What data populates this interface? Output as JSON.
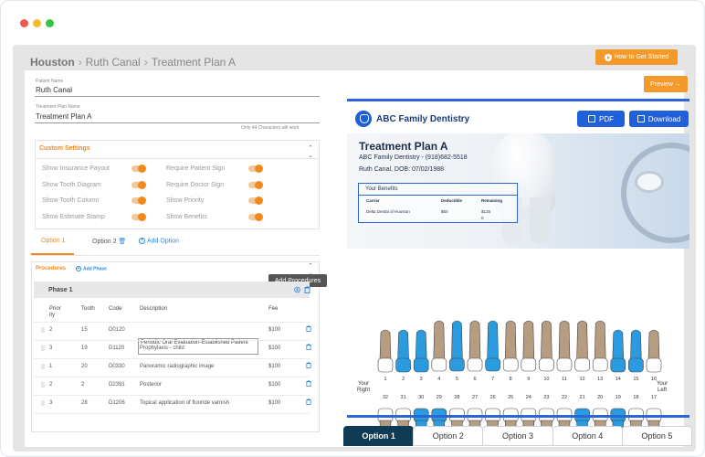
{
  "breadcrumb": {
    "root": "Houston",
    "patient": "Ruth Canal",
    "page": "Treatment Plan A"
  },
  "header": {
    "how_to_label": "How to Get Started",
    "preview_label": "Preview →"
  },
  "form": {
    "patient_label": "Patient Name",
    "patient_value": "Ruth Canal",
    "plan_label": "Treatment Plan Name",
    "plan_value": "Treatment Plan A",
    "char_hint": "Only 44 Characters will work"
  },
  "custom_settings": {
    "title": "Custom Settings",
    "left": [
      "Show Insurance Payout",
      "Show Tooth Diagram",
      "Show Tooth Column",
      "Show Estimate Stamp"
    ],
    "right": [
      "Require Patient Sign",
      "Require Doctor Sign",
      "Show Priority",
      "Show Benefits"
    ]
  },
  "option_tabs": {
    "opt1": "Option 1",
    "opt2": "Option 2",
    "add": "Add Option"
  },
  "procedures": {
    "title": "Procedures",
    "add_phase": "Add Phase",
    "tooltip": "Add Procedures",
    "phase": "Phase 1",
    "headers": {
      "priority": "Prior ity",
      "tooth": "Tooth",
      "code": "Code",
      "desc": "Description",
      "fee": "Fee"
    },
    "rows": [
      {
        "priority": "2",
        "tooth": "15",
        "code": "D0120",
        "desc": "Periodic Oral Evaluation-Established Patient",
        "fee": "$100"
      },
      {
        "priority": "3",
        "tooth": "19",
        "code": "D1120",
        "desc": "Prophylaxis - child",
        "fee": "$100"
      },
      {
        "priority": "1",
        "tooth": "20",
        "code": "D0330",
        "desc": "Panoramic radiographic image",
        "fee": "$100"
      },
      {
        "priority": "2",
        "tooth": "2",
        "code": "D2391",
        "desc": "Posterior",
        "fee": "$100"
      },
      {
        "priority": "3",
        "tooth": "28",
        "code": "D1206",
        "desc": "Topical application of fluoride varnish",
        "fee": "$100"
      }
    ]
  },
  "doc": {
    "practice": "ABC Family Dentistry",
    "pdf_label": "PDF",
    "download_label": "Download",
    "plan_title": "Treatment Plan A",
    "practice_phone": "ABC Family Dentistry - (918)682-5518",
    "patient_line": "Ruth Canal, DOB: 07/02/1988",
    "benefits": {
      "title": "Your Benefits",
      "headers": {
        "carrier": "Carrier",
        "deductible": "Deductible",
        "remaining": "Remaining"
      },
      "carrier": "Delta Dental of Houston",
      "deductible": "$50",
      "remaining": "$125",
      "remaining2": "0"
    },
    "your_right": "Your Right",
    "your_left": "Your Left",
    "upper_numbers": [
      "1",
      "2",
      "3",
      "4",
      "5",
      "6",
      "7",
      "8",
      "9",
      "10",
      "11",
      "12",
      "13",
      "14",
      "15",
      "16"
    ],
    "lower_numbers": [
      "32",
      "31",
      "30",
      "29",
      "28",
      "27",
      "26",
      "25",
      "24",
      "23",
      "22",
      "21",
      "20",
      "19",
      "18",
      "17"
    ],
    "upper_highlight": [
      false,
      true,
      true,
      false,
      true,
      false,
      true,
      false,
      false,
      false,
      false,
      false,
      false,
      true,
      true,
      false
    ],
    "lower_highlight": [
      false,
      false,
      true,
      true,
      false,
      false,
      false,
      false,
      false,
      false,
      false,
      true,
      false,
      true,
      false,
      false
    ],
    "tabs": [
      "Option 1",
      "Option 2",
      "Option 3",
      "Option 4",
      "Option 5"
    ]
  },
  "colors": {
    "accent": "#f08a1c",
    "brand_blue": "#2060d9",
    "tooth_highlight": "#2b9be0",
    "tooth_root": "#b69c80"
  }
}
